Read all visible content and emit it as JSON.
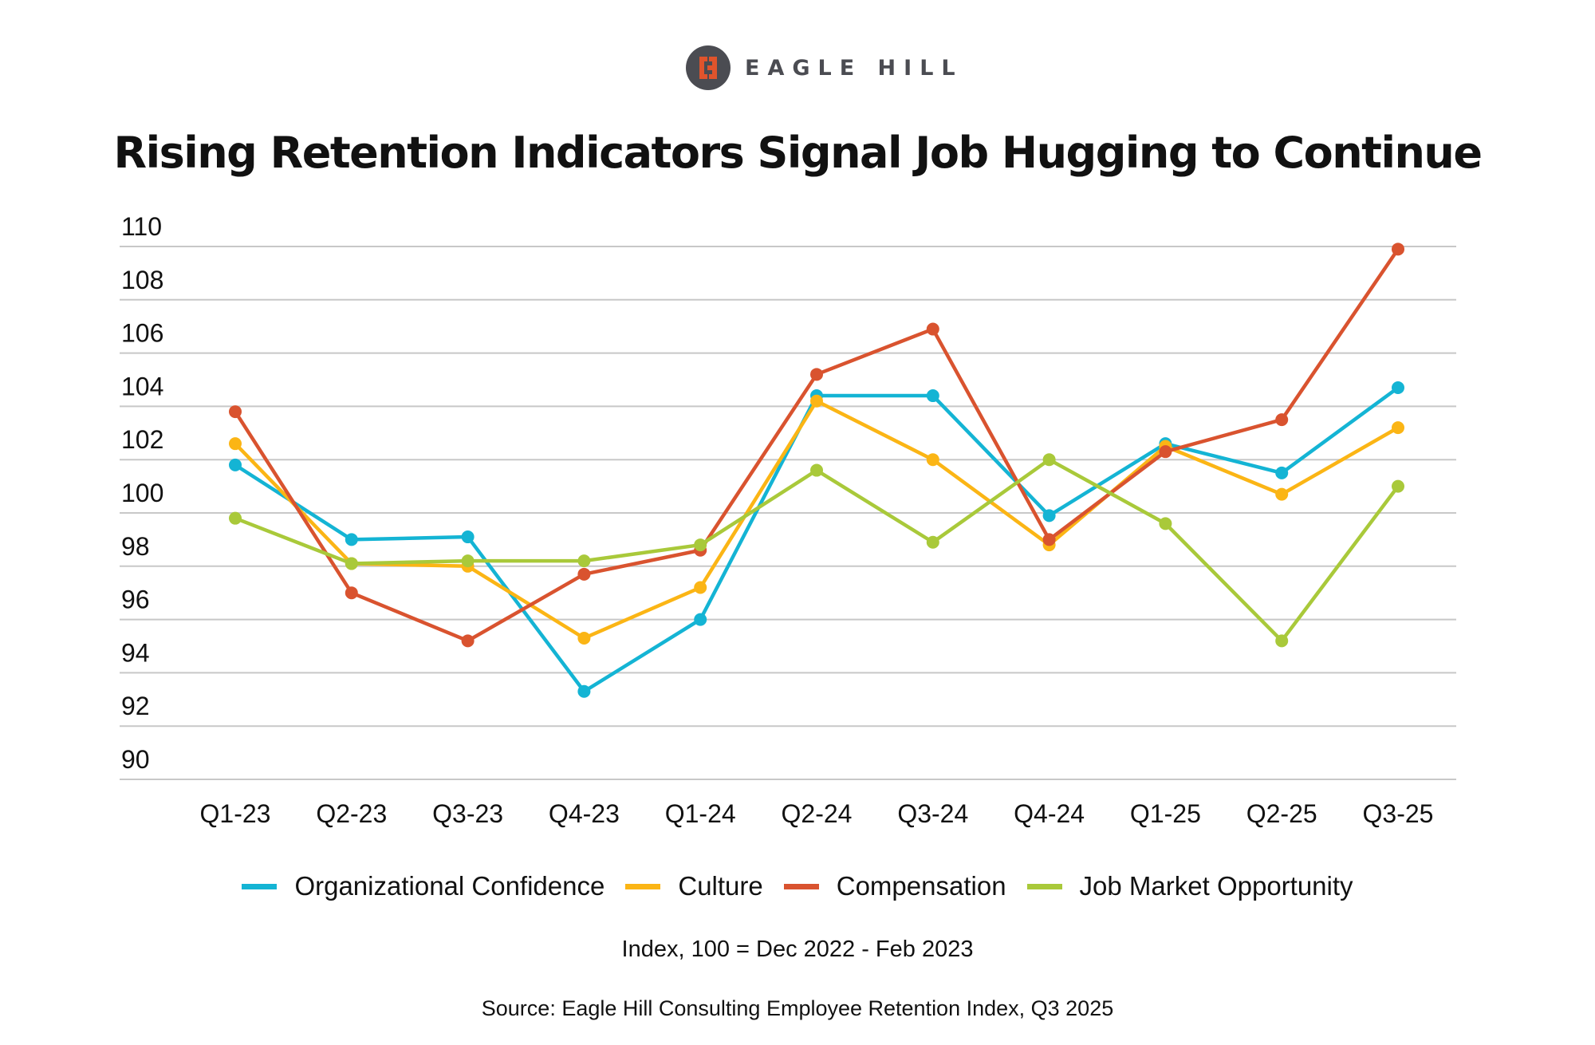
{
  "brand": {
    "logo_icon": "eagle-hill-logo-icon",
    "name": "EAGLE HILL",
    "accent_color": "#e0542c",
    "logo_bg_color": "#4b4c52"
  },
  "index_note": "Index, 100 = Dec 2022 - Feb 2023",
  "source_note": "Source: Eagle Hill Consulting Employee Retention Index, Q3 2025",
  "chart_data": {
    "type": "line",
    "title": "Rising Retention Indicators Signal Job Hugging to Continue",
    "xlabel": "",
    "ylabel": "",
    "categories": [
      "Q1-23",
      "Q2-23",
      "Q3-23",
      "Q4-23",
      "Q1-24",
      "Q2-24",
      "Q3-24",
      "Q4-24",
      "Q1-25",
      "Q2-25",
      "Q3-25"
    ],
    "ylim": [
      90,
      110
    ],
    "yticks": [
      90,
      92,
      94,
      96,
      98,
      100,
      102,
      104,
      106,
      108,
      110
    ],
    "grid": true,
    "legend_position": "bottom",
    "markers": true,
    "series": [
      {
        "name": "Organizational Confidence",
        "color": "#14b4d4",
        "values": [
          101.8,
          99.0,
          99.1,
          93.3,
          96.0,
          104.4,
          104.4,
          99.9,
          102.6,
          101.5,
          104.7
        ]
      },
      {
        "name": "Culture",
        "color": "#fbb515",
        "values": [
          102.6,
          98.1,
          98.0,
          95.3,
          97.2,
          104.2,
          102.0,
          98.8,
          102.5,
          100.7,
          103.2
        ]
      },
      {
        "name": "Compensation",
        "color": "#d9532f",
        "values": [
          103.8,
          97.0,
          95.2,
          97.7,
          98.6,
          105.2,
          106.9,
          99.0,
          102.3,
          103.5,
          109.9
        ]
      },
      {
        "name": "Job Market Opportunity",
        "color": "#a9c93a",
        "values": [
          99.8,
          98.1,
          98.2,
          98.2,
          98.8,
          101.6,
          98.9,
          102.0,
          99.6,
          95.2,
          101.0
        ]
      }
    ]
  }
}
